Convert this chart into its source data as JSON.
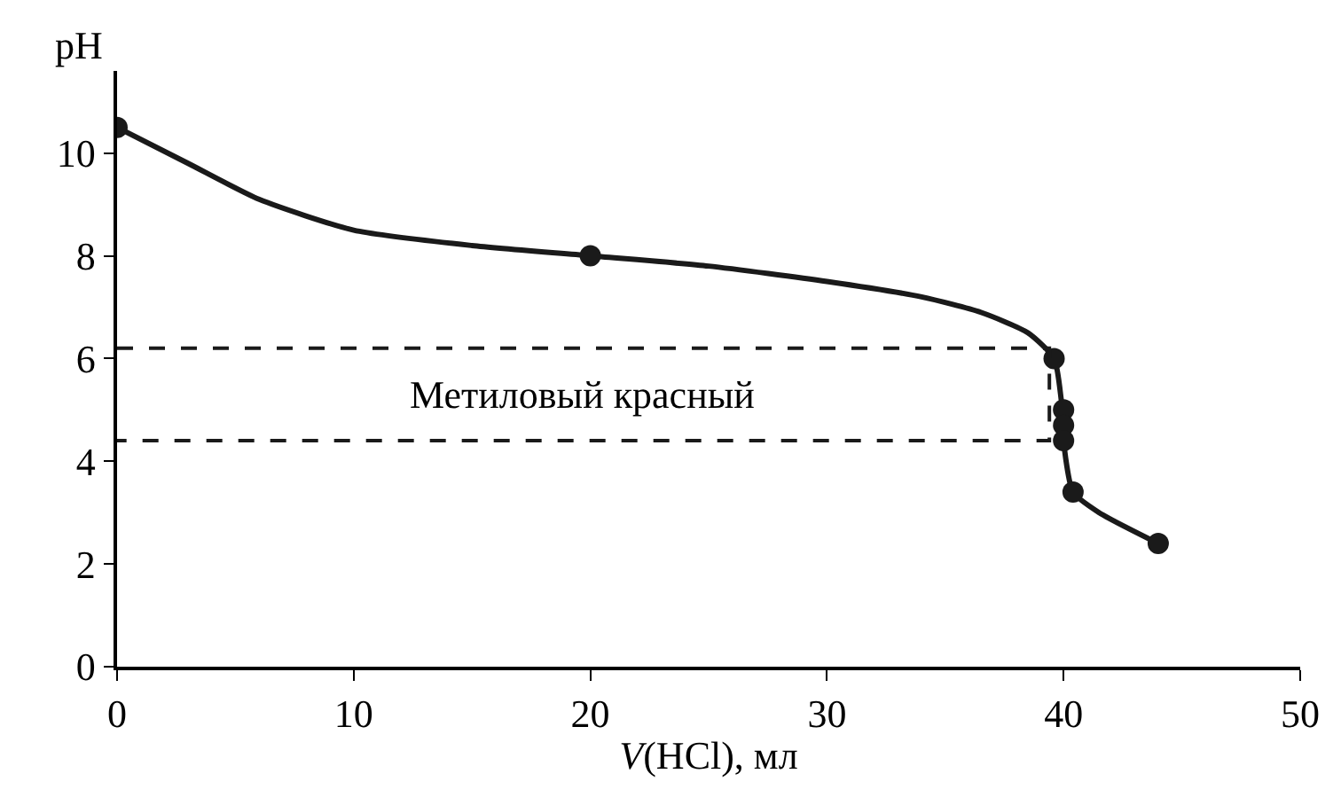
{
  "chart_data": {
    "type": "line",
    "xlabel": "V(HCl), мл",
    "ylabel": "pH",
    "series": [
      {
        "color": "#1a1a1a",
        "marker": "none",
        "x": [
          0,
          3,
          6,
          10,
          15,
          20,
          25,
          30,
          34,
          36.5,
          38.5,
          39.6,
          39.9,
          40,
          40,
          40.4,
          41.5,
          44
        ],
        "values": [
          10.5,
          9.8,
          9.1,
          8.5,
          8.2,
          8.0,
          7.8,
          7.5,
          7.2,
          6.9,
          6.5,
          6.0,
          5.2,
          4.7,
          4.4,
          3.4,
          3.0,
          2.4
        ]
      },
      {
        "type": "scatter",
        "color": "#1a1a1a",
        "marker": "circle",
        "x": [
          0,
          20,
          39.6,
          40,
          40,
          40,
          40.4,
          44
        ],
        "values": [
          10.5,
          8.0,
          6.0,
          5.0,
          4.7,
          4.4,
          3.4,
          2.4
        ]
      },
      {
        "type": "line",
        "color": "#1a1a1a",
        "marker": "none",
        "line_style": "dashed",
        "x": [
          0,
          39.4,
          39.4,
          0
        ],
        "values": [
          6.2,
          6.2,
          4.4,
          4.4
        ]
      }
    ],
    "annotations": [
      "Метиловый красный"
    ],
    "xlim": [
      0,
      50
    ],
    "xticks": [
      0,
      10,
      20,
      30,
      40,
      50
    ],
    "ylim": [
      0,
      11.6
    ],
    "yticks": [
      0,
      2,
      4,
      6,
      8,
      10
    ]
  }
}
